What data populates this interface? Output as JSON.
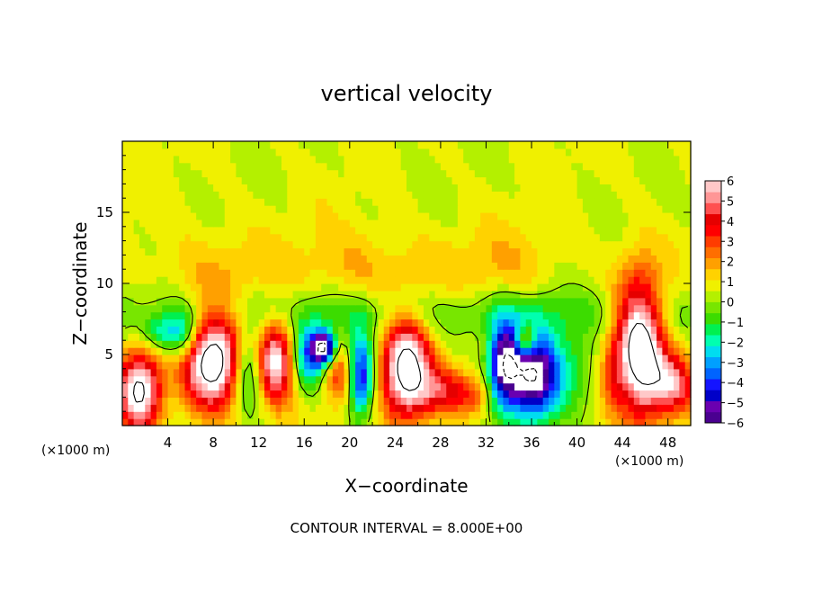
{
  "chart_data": {
    "type": "heatmap",
    "title": "vertical velocity",
    "xlabel": "X−coordinate",
    "ylabel": "Z−coordinate",
    "x_unit_left": "(×1000 m)",
    "x_unit_right": "(×1000 m)",
    "footnote": "CONTOUR INTERVAL = 8.000E+00",
    "xlim": [
      0,
      50
    ],
    "ylim": [
      0,
      20
    ],
    "x_ticks": [
      {
        "value": 4,
        "label": "4"
      },
      {
        "value": 8,
        "label": "8"
      },
      {
        "value": 12,
        "label": "12"
      },
      {
        "value": 16,
        "label": "16"
      },
      {
        "value": 20,
        "label": "20"
      },
      {
        "value": 24,
        "label": "24"
      },
      {
        "value": 28,
        "label": "28"
      },
      {
        "value": 32,
        "label": "32"
      },
      {
        "value": 36,
        "label": "36"
      },
      {
        "value": 40,
        "label": "40"
      },
      {
        "value": 44,
        "label": "44"
      },
      {
        "value": 48,
        "label": "48"
      }
    ],
    "y_ticks": [
      {
        "value": 5,
        "label": "5"
      },
      {
        "value": 10,
        "label": "10"
      },
      {
        "value": 15,
        "label": "15"
      }
    ],
    "colorbar": {
      "min": -6,
      "max": 6,
      "labels": [
        "6",
        "5",
        "4",
        "3",
        "2",
        "1",
        "0",
        "−1",
        "−2",
        "−3",
        "−4",
        "−5",
        "−6"
      ],
      "colors": [
        "#4a0090",
        "#6a00b0",
        "#0000c8",
        "#1414ff",
        "#0064ff",
        "#00a0ff",
        "#00dcf0",
        "#00ffb0",
        "#00f050",
        "#3cdc00",
        "#78e600",
        "#b4f000",
        "#f0f000",
        "#ffd200",
        "#ffa000",
        "#ff6e00",
        "#ff3c00",
        "#ff0000",
        "#e60000",
        "#ff5050",
        "#ff9696",
        "#ffc8c8"
      ]
    },
    "features": [
      {
        "x": 1.5,
        "z": 2.5,
        "sx": 1.3,
        "sz": 2.0,
        "w": 6.5
      },
      {
        "x": 3.5,
        "z": 6.5,
        "sx": 1.2,
        "sz": 1.0,
        "w": -2.5
      },
      {
        "x": 8.0,
        "z": 4.5,
        "sx": 1.8,
        "sz": 2.3,
        "w": 7.5
      },
      {
        "x": 5.5,
        "z": 6.5,
        "sx": 1.0,
        "sz": 1.3,
        "w": -3.0
      },
      {
        "x": 11.0,
        "z": 4.0,
        "sx": 1.0,
        "sz": 2.0,
        "w": -3.0
      },
      {
        "x": 13.5,
        "z": 4.5,
        "sx": 1.1,
        "sz": 2.0,
        "w": 6.0
      },
      {
        "x": 16.5,
        "z": 5.0,
        "sx": 1.0,
        "sz": 1.5,
        "w": -4.0
      },
      {
        "x": 17.8,
        "z": 5.5,
        "sx": 0.7,
        "sz": 0.8,
        "w": -6.5
      },
      {
        "x": 21.0,
        "z": 3.5,
        "sx": 0.8,
        "sz": 2.0,
        "w": -5.5
      },
      {
        "x": 19.0,
        "z": 3.5,
        "sx": 0.9,
        "sz": 1.4,
        "w": 2.5
      },
      {
        "x": 25.0,
        "z": 4.0,
        "sx": 1.5,
        "sz": 2.5,
        "w": 7.0
      },
      {
        "x": 28.5,
        "z": 2.5,
        "sx": 1.8,
        "sz": 1.2,
        "w": 3.5
      },
      {
        "x": 31.0,
        "z": 2.0,
        "sx": 1.0,
        "sz": 0.9,
        "w": 1.5
      },
      {
        "x": 36.0,
        "z": 3.5,
        "sx": 1.8,
        "sz": 2.3,
        "w": -7.5
      },
      {
        "x": 35.5,
        "z": 6.0,
        "sx": 0.6,
        "sz": 0.8,
        "w": 4.0
      },
      {
        "x": 33.5,
        "z": 4.5,
        "sx": 0.9,
        "sz": 2.0,
        "w": -5.0
      },
      {
        "x": 45.5,
        "z": 5.5,
        "sx": 1.5,
        "sz": 3.5,
        "w": 7.5
      },
      {
        "x": 48.5,
        "z": 3.0,
        "sx": 1.5,
        "sz": 1.5,
        "w": 4.5
      },
      {
        "x": 43.0,
        "z": 3.5,
        "sx": 0.8,
        "sz": 1.8,
        "w": 1.5
      },
      {
        "x": 40.0,
        "z": 4.0,
        "sx": 1.5,
        "sz": 2.0,
        "w": -1.5
      },
      {
        "x": 25.0,
        "z": 8.0,
        "sx": 25.0,
        "sz": 1.3,
        "w": -1.4
      },
      {
        "x": 8.0,
        "z": 10.5,
        "sx": 4.0,
        "sz": 2.5,
        "w": 1.0
      },
      {
        "x": 21.0,
        "z": 11.0,
        "sx": 4.0,
        "sz": 2.0,
        "w": 1.2
      },
      {
        "x": 33.0,
        "z": 11.0,
        "sx": 4.0,
        "sz": 2.0,
        "w": 1.0
      }
    ]
  }
}
